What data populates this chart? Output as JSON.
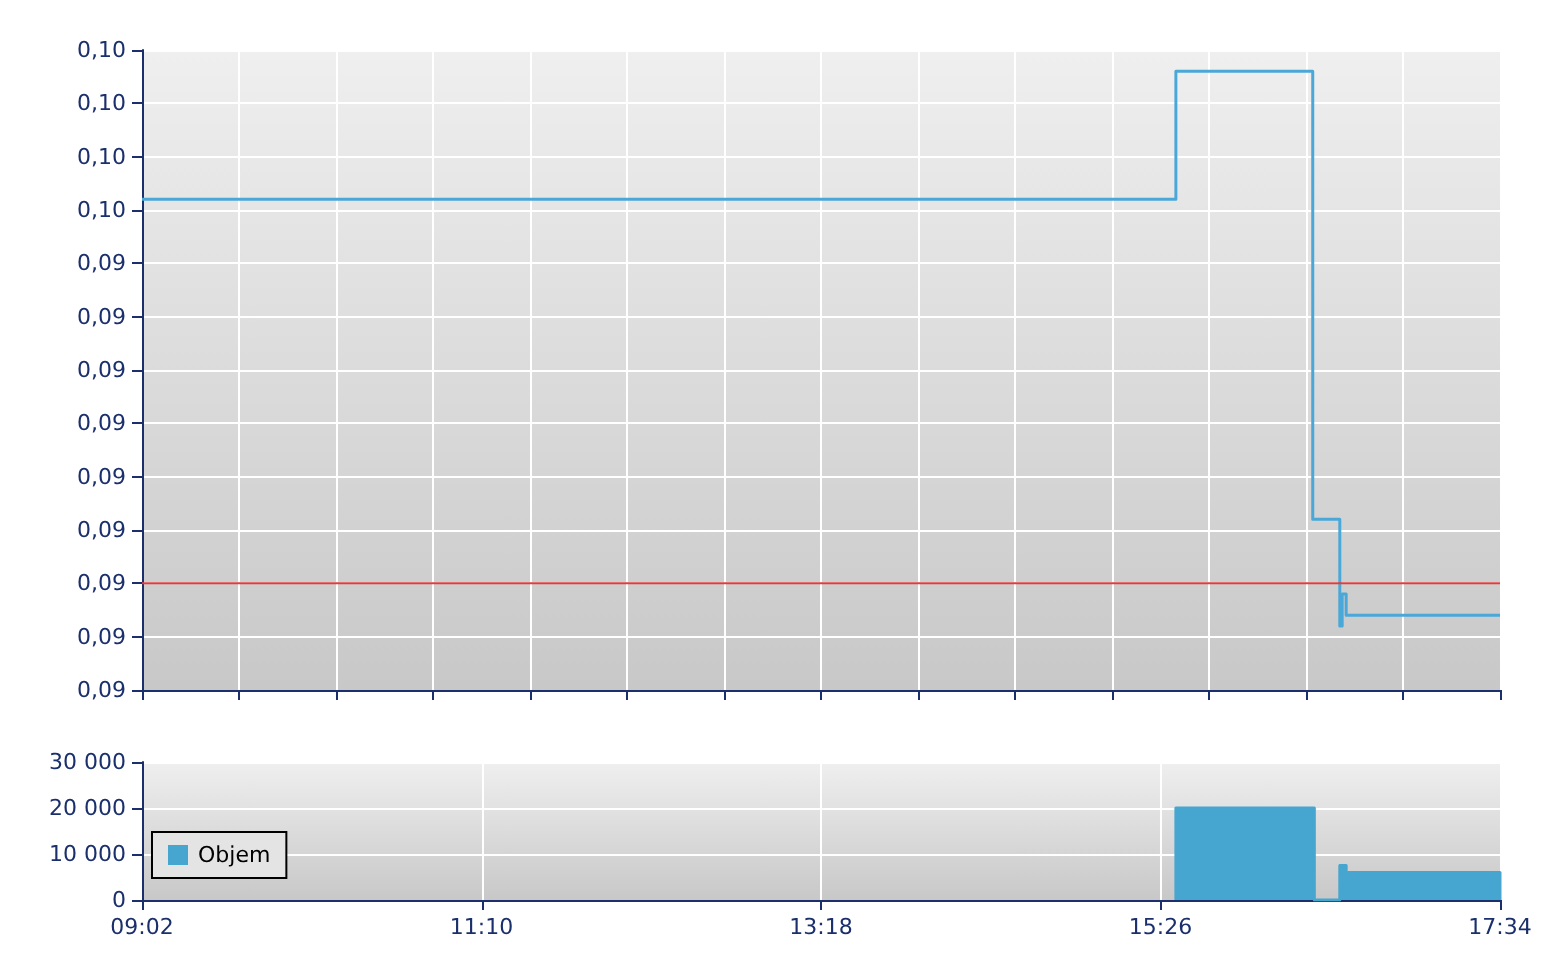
{
  "chart_data": [
    {
      "type": "step",
      "series": [
        {
          "color": "#4aa8d8",
          "x": [
            9.0333,
            15.53,
            16.39,
            16.56,
            16.575,
            16.6,
            17.5667
          ],
          "values": [
            0.0951,
            0.0963,
            0.0921,
            0.0911,
            0.0914,
            0.0912,
            0.0912
          ]
        }
      ],
      "xlim": [
        9.0333,
        17.5667
      ],
      "xticks": [
        {
          "value": 9.0333,
          "label": null
        },
        {
          "value": 9.6428,
          "label": null
        },
        {
          "value": 10.2524,
          "label": null
        },
        {
          "value": 10.8619,
          "label": null
        },
        {
          "value": 11.4714,
          "label": null
        },
        {
          "value": 12.081,
          "label": null
        },
        {
          "value": 12.6905,
          "label": null
        },
        {
          "value": 13.3,
          "label": null
        },
        {
          "value": 13.9095,
          "label": null
        },
        {
          "value": 14.519,
          "label": null
        },
        {
          "value": 15.1286,
          "label": null
        },
        {
          "value": 15.7381,
          "label": null
        },
        {
          "value": 16.3476,
          "label": null
        },
        {
          "value": 16.9571,
          "label": null
        },
        {
          "value": 17.5667,
          "label": null
        }
      ],
      "ylim": [
        0.0905,
        0.0965
      ],
      "yticks": [
        {
          "value": 0.0905,
          "label": "0,09"
        },
        {
          "value": 0.091,
          "label": "0,09"
        },
        {
          "value": 0.0915,
          "label": "0,09"
        },
        {
          "value": 0.092,
          "label": "0,09"
        },
        {
          "value": 0.0925,
          "label": "0,09"
        },
        {
          "value": 0.093,
          "label": "0,09"
        },
        {
          "value": 0.0935,
          "label": "0,09"
        },
        {
          "value": 0.094,
          "label": "0,09"
        },
        {
          "value": 0.0945,
          "label": "0,09"
        },
        {
          "value": 0.095,
          "label": "0,10"
        },
        {
          "value": 0.0955,
          "label": "0,10"
        },
        {
          "value": 0.096,
          "label": "0,10"
        },
        {
          "value": 0.0965,
          "label": "0,10"
        }
      ],
      "ref_lines": [
        {
          "axis": "y",
          "value": 0.0915,
          "color": "#e03c3c"
        }
      ],
      "grid": true,
      "tick_labels": "y",
      "marker": "none"
    },
    {
      "type": "area",
      "series": [
        {
          "name": "Objem",
          "color": "#46a6cf",
          "x": [
            15.53,
            15.53,
            16.4,
            16.4,
            16.56,
            16.56,
            16.6,
            16.6,
            17.5667,
            17.5667
          ],
          "values": [
            0,
            20000,
            20000,
            0,
            0,
            7500,
            7500,
            6000,
            6000,
            0
          ]
        }
      ],
      "xlim": [
        9.0333,
        17.5667
      ],
      "xticks": [
        {
          "value": 9.0333,
          "label": "09:02"
        },
        {
          "value": 11.1667,
          "label": "11:10"
        },
        {
          "value": 13.3,
          "label": "13:18"
        },
        {
          "value": 15.4333,
          "label": "15:26"
        },
        {
          "value": 17.5667,
          "label": "17:34"
        }
      ],
      "ylim": [
        0,
        30000
      ],
      "yticks": [
        0,
        {
          "value": 10000,
          "label": "10 000"
        },
        {
          "value": 20000,
          "label": "20 000"
        },
        {
          "value": 30000,
          "label": "30 000"
        }
      ],
      "grid": true,
      "legend": "left"
    }
  ]
}
